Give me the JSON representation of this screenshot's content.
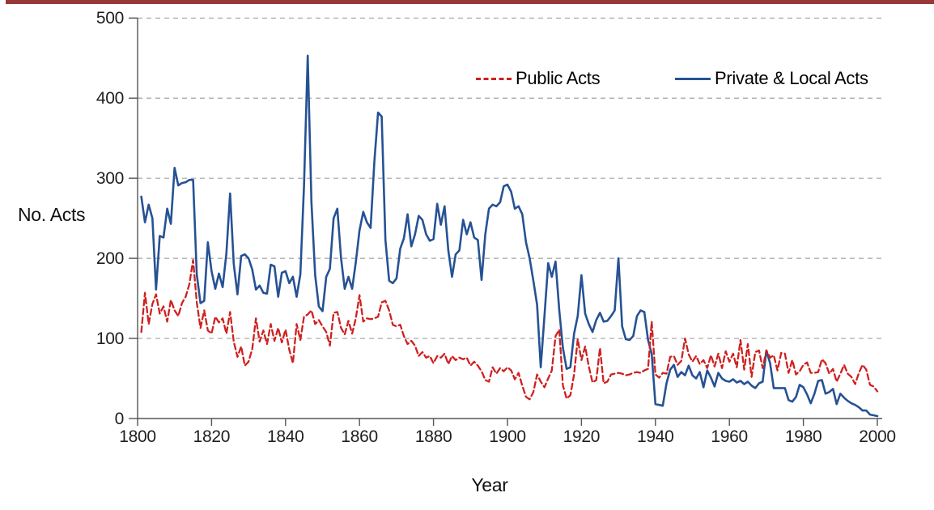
{
  "page": {
    "top_border_color": "#97393a",
    "background": "#ffffff"
  },
  "chart_data": {
    "type": "line",
    "title": "",
    "xlabel": "Year",
    "ylabel": "No. Acts",
    "xlim": [
      1800,
      2000
    ],
    "ylim": [
      0,
      500
    ],
    "x_ticks": [
      1800,
      1820,
      1840,
      1860,
      1880,
      1900,
      1920,
      1940,
      1960,
      1980,
      2000
    ],
    "y_ticks": [
      0,
      100,
      200,
      300,
      400,
      500
    ],
    "grid": "horizontal-dashed",
    "gridline_color": "#a3a3a3",
    "axis_color": "#555555",
    "legend_position": "top-inside",
    "x_start": 1801,
    "series": [
      {
        "name": "Public Acts",
        "color": "#ce2120",
        "style": "dashed",
        "values": [
          108,
          157,
          118,
          143,
          155,
          131,
          140,
          121,
          148,
          135,
          128,
          144,
          152,
          168,
          198,
          145,
          113,
          135,
          110,
          106,
          127,
          120,
          125,
          106,
          133,
          96,
          77,
          90,
          66,
          71,
          87,
          125,
          96,
          110,
          93,
          118,
          97,
          113,
          95,
          111,
          86,
          69,
          118,
          98,
          127,
          130,
          135,
          118,
          123,
          115,
          108,
          91,
          132,
          133,
          113,
          105,
          122,
          106,
          125,
          154,
          121,
          125,
          124,
          125,
          127,
          145,
          147,
          135,
          117,
          115,
          117,
          103,
          93,
          97,
          91,
          78,
          83,
          76,
          78,
          69,
          78,
          76,
          81,
          68,
          78,
          73,
          76,
          74,
          76,
          66,
          71,
          66,
          59,
          48,
          46,
          64,
          56,
          63,
          59,
          64,
          60,
          49,
          57,
          41,
          27,
          24,
          33,
          55,
          46,
          39,
          50,
          60,
          103,
          111,
          41,
          25,
          29,
          55,
          99,
          73,
          90,
          65,
          45,
          48,
          88,
          44,
          46,
          55,
          56,
          57,
          56,
          54,
          55,
          57,
          58,
          57,
          60,
          62,
          121,
          55,
          51,
          57,
          56,
          77,
          78,
          67,
          72,
          100,
          80,
          71,
          78,
          68,
          73,
          63,
          79,
          65,
          81,
          63,
          84,
          71,
          81,
          64,
          98,
          61,
          93,
          52,
          83,
          85,
          63,
          85,
          76,
          79,
          60,
          82,
          81,
          57,
          73,
          55,
          59,
          67,
          70,
          57,
          57,
          58,
          74,
          69,
          56,
          62,
          46,
          56,
          67,
          56,
          52,
          43,
          57,
          67,
          61,
          42,
          40,
          34
        ]
      },
      {
        "name": "Private & Local Acts",
        "color": "#265294",
        "style": "solid",
        "values": [
          277,
          245,
          267,
          250,
          161,
          228,
          226,
          262,
          243,
          313,
          291,
          294,
          295,
          298,
          298,
          180,
          144,
          147,
          220,
          184,
          162,
          181,
          164,
          206,
          281,
          193,
          155,
          203,
          205,
          200,
          186,
          161,
          166,
          157,
          156,
          192,
          190,
          152,
          182,
          184,
          169,
          177,
          152,
          180,
          290,
          453,
          270,
          179,
          140,
          134,
          177,
          187,
          250,
          262,
          200,
          162,
          177,
          162,
          195,
          235,
          258,
          245,
          238,
          320,
          382,
          377,
          223,
          172,
          169,
          175,
          212,
          225,
          255,
          215,
          230,
          253,
          248,
          230,
          222,
          224,
          268,
          242,
          265,
          210,
          177,
          205,
          210,
          248,
          230,
          245,
          226,
          223,
          173,
          230,
          262,
          267,
          265,
          270,
          290,
          292,
          283,
          262,
          265,
          255,
          220,
          200,
          172,
          142,
          64,
          128,
          194,
          177,
          196,
          135,
          88,
          62,
          64,
          106,
          128,
          179,
          131,
          118,
          108,
          123,
          132,
          121,
          122,
          128,
          135,
          200,
          115,
          99,
          98,
          103,
          128,
          135,
          133,
          98,
          81,
          18,
          17,
          16,
          44,
          61,
          67,
          52,
          58,
          54,
          66,
          54,
          50,
          58,
          39,
          60,
          51,
          40,
          57,
          50,
          47,
          46,
          49,
          45,
          47,
          43,
          46,
          41,
          38,
          44,
          46,
          85,
          69,
          38,
          38,
          38,
          38,
          23,
          21,
          27,
          42,
          39,
          30,
          19,
          31,
          47,
          48,
          31,
          33,
          37,
          18,
          31,
          26,
          22,
          19,
          17,
          14,
          10,
          10,
          5,
          4,
          3
        ]
      }
    ]
  }
}
